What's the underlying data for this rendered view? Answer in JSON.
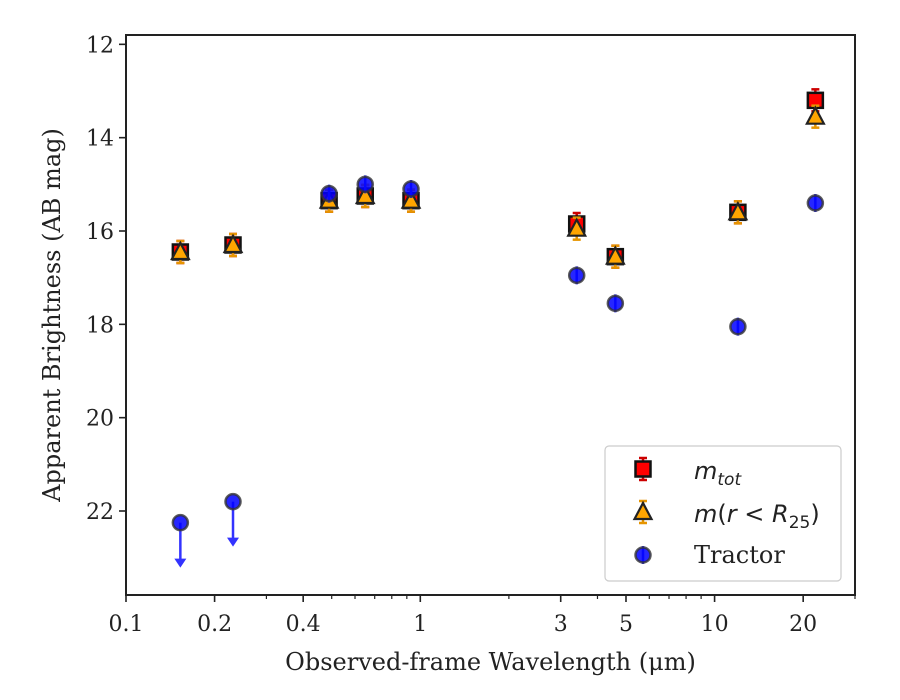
{
  "chart_data": {
    "type": "scatter",
    "xlabel": "Observed-frame Wavelength (μm)",
    "ylabel": "Apparent Brightness (AB mag)",
    "xscale": "log",
    "xlim": [
      0.1,
      30
    ],
    "ylim": [
      23.8,
      11.8
    ],
    "y_inverted": true,
    "grid": false,
    "legend_position": "lower-right",
    "x_ticks": [
      {
        "value": 0.1,
        "label": "0.1"
      },
      {
        "value": 0.2,
        "label": "0.2"
      },
      {
        "value": 0.4,
        "label": "0.4"
      },
      {
        "value": 1,
        "label": "1"
      },
      {
        "value": 3,
        "label": "3"
      },
      {
        "value": 5,
        "label": "5"
      },
      {
        "value": 10,
        "label": "10"
      },
      {
        "value": 20,
        "label": "20"
      }
    ],
    "y_ticks": [
      {
        "value": 12,
        "label": "12"
      },
      {
        "value": 14,
        "label": "14"
      },
      {
        "value": 16,
        "label": "16"
      },
      {
        "value": 18,
        "label": "18"
      },
      {
        "value": 20,
        "label": "20"
      },
      {
        "value": 22,
        "label": "22"
      }
    ],
    "series": [
      {
        "name_main": "m",
        "name_sub": "tot",
        "marker": "square",
        "color": "#ff0000",
        "errcolor": "#cc0000",
        "points": [
          {
            "x": 0.153,
            "y": 16.45
          },
          {
            "x": 0.231,
            "y": 16.3
          },
          {
            "x": 0.49,
            "y": 15.35
          },
          {
            "x": 0.65,
            "y": 15.25
          },
          {
            "x": 0.93,
            "y": 15.35
          },
          {
            "x": 3.4,
            "y": 15.85
          },
          {
            "x": 4.6,
            "y": 16.55
          },
          {
            "x": 12.0,
            "y": 15.6
          },
          {
            "x": 22.0,
            "y": 13.2
          }
        ]
      },
      {
        "name_main": "m",
        "name_paren_open": "(",
        "name_r": "r",
        "name_lt": " < ",
        "name_R": "R",
        "name_sub": "25",
        "name_paren_close": ")",
        "marker": "triangle",
        "color": "#ffa500",
        "errcolor": "#e69500",
        "points": [
          {
            "x": 0.153,
            "y": 16.45
          },
          {
            "x": 0.231,
            "y": 16.3
          },
          {
            "x": 0.49,
            "y": 15.35
          },
          {
            "x": 0.65,
            "y": 15.25
          },
          {
            "x": 0.93,
            "y": 15.35
          },
          {
            "x": 3.4,
            "y": 15.95
          },
          {
            "x": 4.6,
            "y": 16.55
          },
          {
            "x": 12.0,
            "y": 15.6
          },
          {
            "x": 22.0,
            "y": 13.55
          }
        ]
      },
      {
        "name": "Tractor",
        "marker": "circle",
        "color": "#0000ff",
        "errcolor": "#3333ff",
        "points": [
          {
            "x": 0.153,
            "y": 22.25,
            "upper_limit": true
          },
          {
            "x": 0.231,
            "y": 21.8,
            "upper_limit": true
          },
          {
            "x": 0.49,
            "y": 15.2
          },
          {
            "x": 0.65,
            "y": 15.0
          },
          {
            "x": 0.93,
            "y": 15.1
          },
          {
            "x": 3.4,
            "y": 16.95
          },
          {
            "x": 4.6,
            "y": 17.55
          },
          {
            "x": 12.0,
            "y": 18.05
          },
          {
            "x": 22.0,
            "y": 15.4
          }
        ]
      }
    ]
  }
}
